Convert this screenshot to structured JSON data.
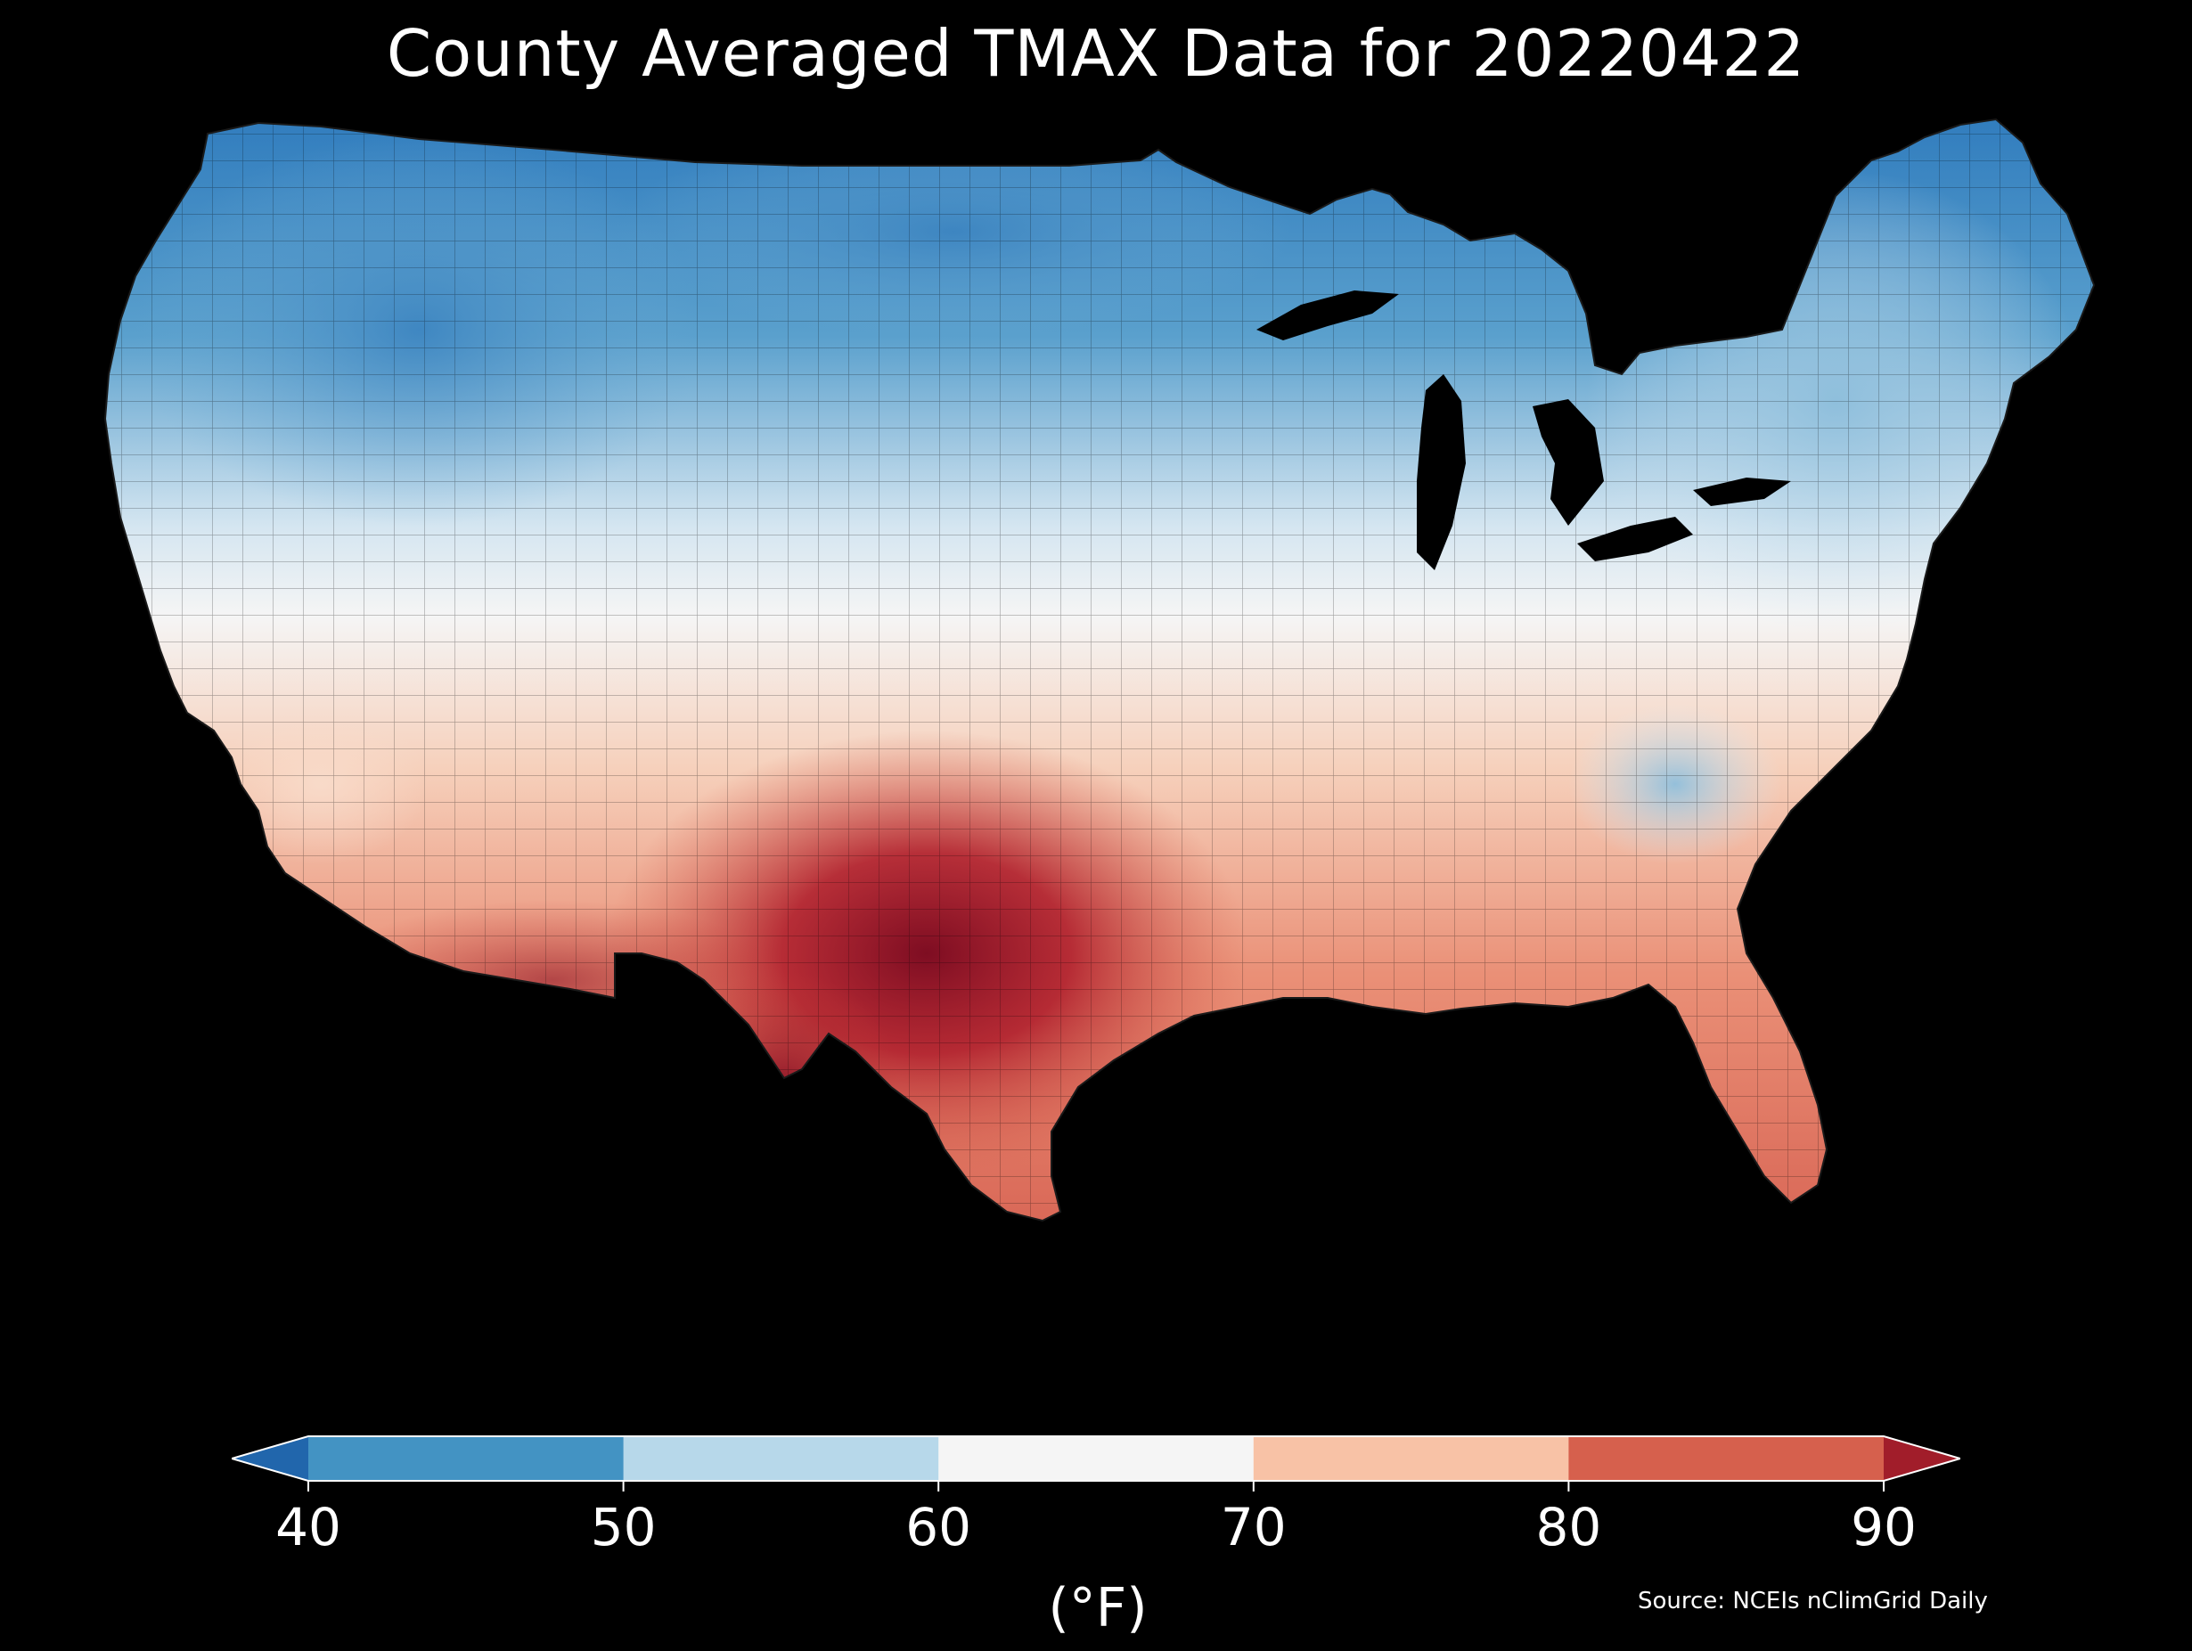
{
  "title": "County Averaged TMAX Data for 20220422",
  "colorbar": {
    "unit": "(°F)",
    "ticks": [
      "40",
      "50",
      "60",
      "70",
      "80",
      "90"
    ],
    "bins": [
      {
        "range": [
          40,
          50
        ],
        "color": "#4393c3"
      },
      {
        "range": [
          50,
          60
        ],
        "color": "#b7d8ea"
      },
      {
        "range": [
          60,
          70
        ],
        "color": "#f5f5f5"
      },
      {
        "range": [
          70,
          80
        ],
        "color": "#f8c2a6"
      },
      {
        "range": [
          80,
          90
        ],
        "color": "#d6604d"
      }
    ],
    "extend_low_color": "#2166ac",
    "extend_high_color": "#a11d2a"
  },
  "source": "Source: NCEIs nClimGrid Daily",
  "map": {
    "region": "contiguous-us",
    "background_color": "#000000"
  }
}
